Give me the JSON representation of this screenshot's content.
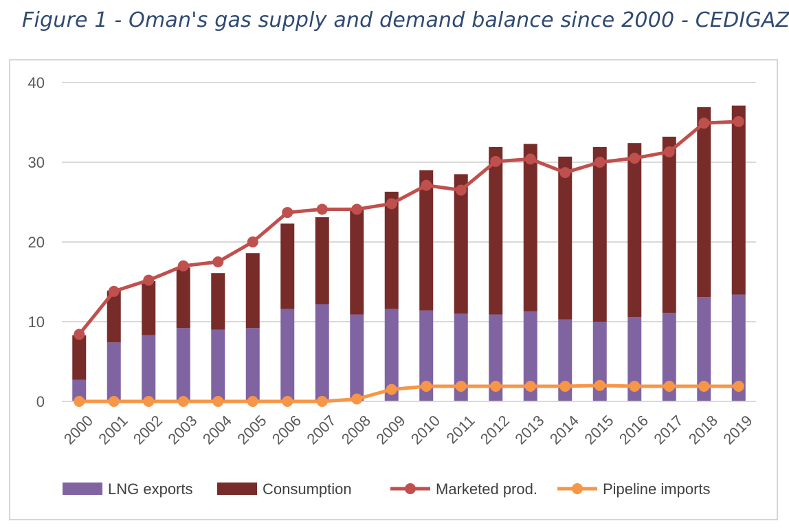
{
  "title": "Figure 1 - Oman's gas supply and demand balance since 2000 - CEDIGAZ",
  "chart_data": {
    "type": "bar",
    "stacked": true,
    "categories": [
      "2000",
      "2001",
      "2002",
      "2003",
      "2004",
      "2005",
      "2006",
      "2007",
      "2008",
      "2009",
      "2010",
      "2011",
      "2012",
      "2013",
      "2014",
      "2015",
      "2016",
      "2017",
      "2018",
      "2019"
    ],
    "ylim": [
      0,
      40
    ],
    "yticks": [
      0,
      10,
      20,
      30,
      40
    ],
    "grid": true,
    "legend_position": "bottom",
    "series": [
      {
        "name": "LNG exports",
        "kind": "bar",
        "color": "#8064a2",
        "values": [
          2.7,
          7.4,
          8.3,
          9.2,
          9.0,
          9.2,
          11.6,
          12.2,
          10.9,
          11.6,
          11.4,
          11.0,
          10.9,
          11.3,
          10.3,
          10.0,
          10.6,
          11.1,
          13.1,
          13.4
        ]
      },
      {
        "name": "Consumption",
        "kind": "bar",
        "color": "#772c2a",
        "values": [
          5.6,
          6.5,
          6.8,
          7.6,
          7.1,
          9.4,
          10.7,
          10.9,
          13.1,
          14.7,
          17.6,
          17.5,
          21.0,
          21.0,
          20.4,
          21.9,
          21.8,
          22.1,
          23.8,
          23.7
        ]
      },
      {
        "name": "Marketed prod.",
        "kind": "line",
        "color": "#c0504d",
        "values": [
          8.4,
          13.8,
          15.2,
          17.0,
          17.5,
          20.0,
          23.7,
          24.1,
          24.1,
          24.8,
          27.1,
          26.5,
          30.1,
          30.4,
          28.7,
          30.0,
          30.5,
          31.3,
          34.9,
          35.1
        ]
      },
      {
        "name": "Pipeline imports",
        "kind": "line",
        "color": "#f79646",
        "values": [
          0,
          0,
          0,
          0,
          0,
          0,
          0,
          0,
          0.3,
          1.5,
          1.9,
          1.9,
          1.9,
          1.9,
          1.9,
          2.0,
          1.9,
          1.9,
          1.9,
          1.9
        ]
      }
    ]
  }
}
